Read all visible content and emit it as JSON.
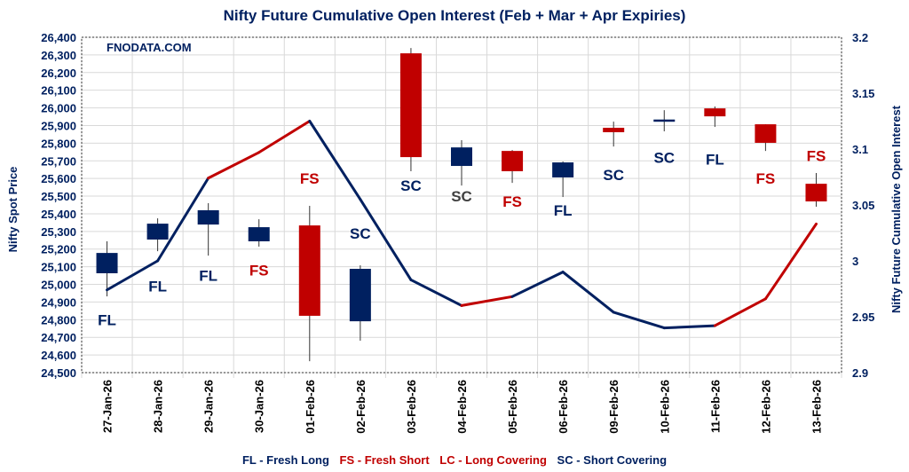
{
  "chart_data": {
    "type": "candlestick+line",
    "title": "Nifty Future Cumulative Open Interest (Feb + Mar + Apr Expiries)",
    "watermark": "FNODATA.COM",
    "ylabel": "Nifty Spot Price",
    "y2label": "Nifty Future Cumulative Open Interest",
    "ylim": [
      24500,
      26400
    ],
    "y2lim": [
      2.9,
      3.2
    ],
    "yticks": [
      "24,500",
      "24,600",
      "24,700",
      "24,800",
      "24,900",
      "25,000",
      "25,100",
      "25,200",
      "25,300",
      "25,400",
      "25,500",
      "25,600",
      "25,700",
      "25,800",
      "25,900",
      "26,000",
      "26,100",
      "26,200",
      "26,300",
      "26,400"
    ],
    "y2ticks": [
      "2.9",
      "2.95",
      "3",
      "3.05",
      "3.1",
      "3.15",
      "3.2"
    ],
    "grid": true,
    "categories": [
      "27-Jan-26",
      "28-Jan-26",
      "29-Jan-26",
      "30-Jan-26",
      "01-Feb-26",
      "02-Feb-26",
      "03-Feb-26",
      "04-Feb-26",
      "05-Feb-26",
      "06-Feb-26",
      "09-Feb-26",
      "10-Feb-26",
      "11-Feb-26",
      "12-Feb-26",
      "13-Feb-26"
    ],
    "candles": [
      {
        "open": 25063,
        "high": 25244,
        "low": 24932,
        "close": 25178
      },
      {
        "open": 25254,
        "high": 25374,
        "low": 25188,
        "close": 25344
      },
      {
        "open": 25339,
        "high": 25460,
        "low": 25163,
        "close": 25420
      },
      {
        "open": 25244,
        "high": 25369,
        "low": 25214,
        "close": 25324
      },
      {
        "open": 25334,
        "high": 25445,
        "low": 24565,
        "close": 24822
      },
      {
        "open": 24791,
        "high": 25108,
        "low": 24681,
        "close": 25088
      },
      {
        "open": 26309,
        "high": 26339,
        "low": 25641,
        "close": 25721
      },
      {
        "open": 25671,
        "high": 25817,
        "low": 25560,
        "close": 25776
      },
      {
        "open": 25756,
        "high": 25761,
        "low": 25575,
        "close": 25641
      },
      {
        "open": 25606,
        "high": 25696,
        "low": 25495,
        "close": 25691
      },
      {
        "open": 25887,
        "high": 25922,
        "low": 25781,
        "close": 25862
      },
      {
        "open": 25930,
        "high": 25987,
        "low": 25867,
        "close": 25934
      },
      {
        "open": 25997,
        "high": 26008,
        "low": 25892,
        "close": 25952
      },
      {
        "open": 25907,
        "high": 25907,
        "low": 25756,
        "close": 25802
      },
      {
        "open": 25570,
        "high": 25631,
        "low": 25440,
        "close": 25470
      }
    ],
    "open_interest": [
      2.974,
      3.0,
      3.074,
      3.097,
      3.125,
      3.055,
      2.983,
      2.96,
      2.968,
      2.99,
      2.954,
      2.94,
      2.942,
      2.966,
      3.033
    ],
    "labels": [
      "FL",
      "FL",
      "FL",
      "FS",
      "FS",
      "SC",
      "SC",
      "SC",
      "FS",
      "FL",
      "SC",
      "SC",
      "FL",
      "FS",
      "FS"
    ],
    "label_values": [
      24800,
      24990,
      25050,
      25080,
      25600,
      25290,
      25560,
      25500,
      25470,
      25420,
      25620,
      25720,
      25710,
      25600,
      25730
    ],
    "colors": {
      "up": "#002060",
      "down": "#c00000",
      "FL": "#002060",
      "SC": "#002060",
      "FS": "#c00000",
      "LC": "#c00000",
      "SC_gray": "#404040",
      "grid": "#d9d9d9",
      "axis_text": "#002060"
    },
    "legend": [
      {
        "text": "FL - Fresh Long",
        "color": "#002060"
      },
      {
        "text": "FS - Fresh Short",
        "color": "#c00000"
      },
      {
        "text": "LC - Long Covering",
        "color": "#c00000"
      },
      {
        "text": "SC - Short Covering",
        "color": "#002060"
      }
    ]
  }
}
